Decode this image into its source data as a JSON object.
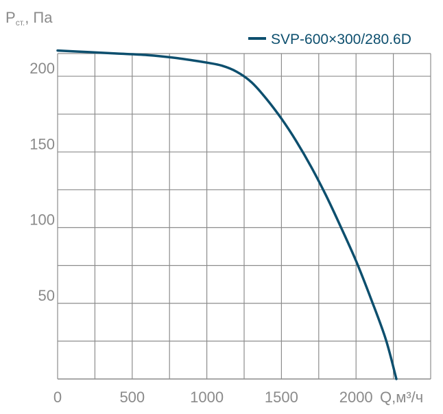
{
  "chart_data": {
    "type": "line",
    "ylabel_main": "P",
    "ylabel_sub": "ст.",
    "ylabel_unit": ", Па",
    "xlabel": "Q,м³/ч",
    "xlim": [
      0,
      2500
    ],
    "ylim": [
      0,
      215
    ],
    "x_ticks": [
      0,
      500,
      1000,
      1500,
      2000
    ],
    "x_tick_labels": [
      "0",
      "500",
      "1000",
      "1500",
      "2000"
    ],
    "y_ticks": [
      50,
      100,
      150,
      200
    ],
    "y_tick_labels": [
      "50",
      "100",
      "150",
      "200"
    ],
    "grid": true,
    "legend_position": "top-right",
    "line_color": "#0d4f6e",
    "grid_color": "#8c8c8c",
    "series": [
      {
        "name": "SVP-600×300/280.6D",
        "x": [
          0,
          200,
          400,
          600,
          800,
          1000,
          1100,
          1200,
          1300,
          1400,
          1500,
          1600,
          1700,
          1800,
          1900,
          2000,
          2100,
          2200,
          2270
        ],
        "y": [
          217,
          216,
          215,
          214,
          212,
          209,
          207,
          203,
          196,
          185,
          172,
          157,
          140,
          121,
          100,
          78,
          53,
          26,
          0
        ]
      }
    ]
  }
}
